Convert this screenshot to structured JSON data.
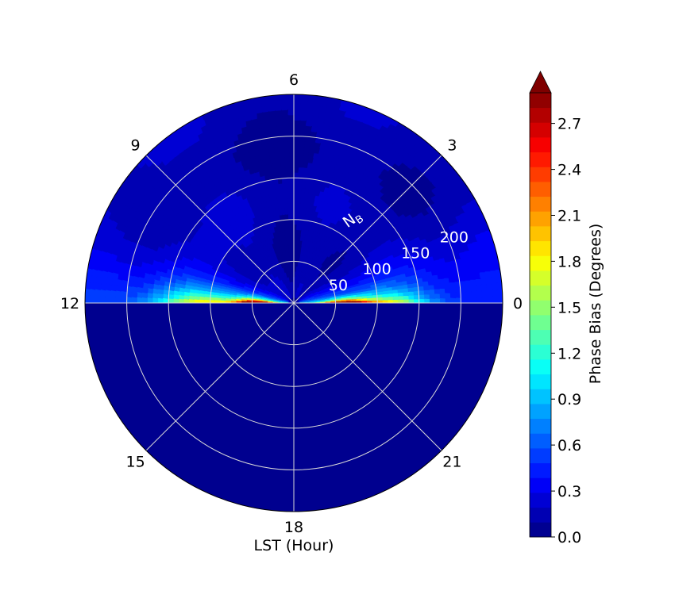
{
  "chart_data": {
    "type": "heatmap",
    "projection": "polar",
    "angular_axis": {
      "xlabel": "LST (Hour)",
      "ticks": [
        "0",
        "3",
        "6",
        "9",
        "12",
        "15",
        "18",
        "21"
      ]
    },
    "radial_axis": {
      "label": "N",
      "label_subscript": "B",
      "ticks": [
        "50",
        "100",
        "150",
        "200"
      ],
      "rmax": 250
    },
    "colorbar": {
      "label": "Phase Bias (Degrees)",
      "ticks": [
        "0.0",
        "0.3",
        "0.6",
        "0.9",
        "1.2",
        "1.5",
        "1.8",
        "2.1",
        "2.4",
        "2.7"
      ],
      "min": 0,
      "max": 2.9,
      "extend": "max",
      "colormap": "jet"
    },
    "field": {
      "description_levels": "filled contour, 30 levels",
      "upper_half_LST_0_to_12": [
        {
          "lst": 0.1,
          "r_peak": 65,
          "peak": 2.9
        },
        {
          "lst": 0.1,
          "r_far": 200,
          "value_far": 0.6
        },
        {
          "lst": 0.5,
          "value_r100": 1.0
        },
        {
          "lst": 1.5,
          "value_r100": 0.4
        },
        {
          "lst": 3,
          "value_r100": 0.2
        },
        {
          "lst": 6,
          "value_r100": 0.15
        },
        {
          "lst": 9,
          "value_r100": 0.35
        },
        {
          "lst": 10.5,
          "value_r100": 0.9
        },
        {
          "lst": 11.5,
          "value_r100": 1.5
        },
        {
          "lst": 11.9,
          "r_peak": 45,
          "peak": 2.9
        }
      ],
      "lower_half_LST_12_to_24": 0.0
    }
  }
}
